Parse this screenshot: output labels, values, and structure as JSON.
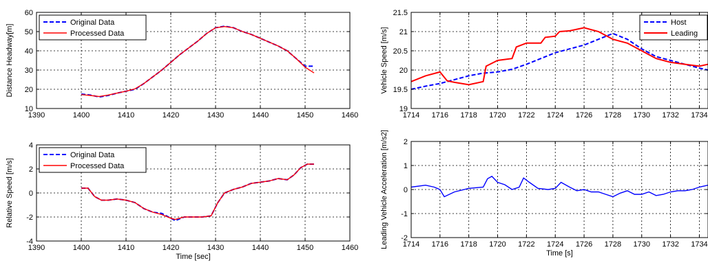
{
  "chart_data": [
    {
      "id": "headway",
      "type": "line",
      "xlabel": "",
      "ylabel": "Distance Headway[m]",
      "xlim": [
        1390,
        1460
      ],
      "ylim": [
        10,
        60
      ],
      "xticks": [
        1390,
        1400,
        1410,
        1420,
        1430,
        1440,
        1450,
        1460
      ],
      "yticks": [
        10,
        20,
        30,
        40,
        50,
        60
      ],
      "grid": true,
      "legend_position": "top-left",
      "series": [
        {
          "name": "Original Data",
          "color": "#0000ff",
          "style": "dashed",
          "x": [
            1400,
            1402,
            1404,
            1406,
            1408,
            1410,
            1412,
            1414,
            1416,
            1418,
            1420,
            1422,
            1424,
            1426,
            1428,
            1430,
            1432,
            1434,
            1436,
            1438,
            1440,
            1442,
            1444,
            1446,
            1448,
            1450,
            1452
          ],
          "y": [
            17.5,
            17.0,
            16.0,
            16.8,
            18.0,
            19.0,
            20.0,
            23.0,
            26.5,
            30.0,
            34.0,
            38.0,
            41.5,
            45.0,
            49.0,
            52.0,
            52.8,
            52.0,
            50.0,
            48.5,
            46.5,
            44.5,
            42.5,
            40.0,
            36.0,
            32.0,
            32.0
          ]
        },
        {
          "name": "Processed Data",
          "color": "#ff0000",
          "style": "solid",
          "x": [
            1400,
            1402,
            1404,
            1406,
            1408,
            1410,
            1412,
            1414,
            1416,
            1418,
            1420,
            1422,
            1424,
            1426,
            1428,
            1430,
            1432,
            1434,
            1436,
            1438,
            1440,
            1442,
            1444,
            1446,
            1448,
            1450,
            1452
          ],
          "y": [
            17.2,
            16.8,
            16.2,
            17.0,
            18.0,
            19.0,
            20.2,
            23.0,
            26.5,
            30.0,
            34.0,
            38.0,
            41.5,
            45.0,
            49.0,
            52.0,
            52.6,
            52.0,
            50.0,
            48.5,
            46.5,
            44.5,
            42.5,
            40.0,
            36.0,
            31.5,
            28.5
          ]
        }
      ]
    },
    {
      "id": "relspeed",
      "type": "line",
      "xlabel": "Time [sec]",
      "ylabel": "Relative Speed [m/s]",
      "xlim": [
        1390,
        1460
      ],
      "ylim": [
        -4,
        4
      ],
      "xticks": [
        1390,
        1400,
        1410,
        1420,
        1430,
        1440,
        1450,
        1460
      ],
      "yticks": [
        -4,
        -2,
        0,
        2,
        4
      ],
      "grid": true,
      "legend_position": "top-left",
      "series": [
        {
          "name": "Original Data",
          "color": "#0000ff",
          "style": "dashed",
          "x": [
            1400,
            1401.5,
            1403,
            1404.5,
            1406,
            1408,
            1410,
            1412,
            1414,
            1416,
            1418,
            1420,
            1421,
            1423,
            1425,
            1427,
            1429,
            1430.5,
            1432,
            1434,
            1436,
            1438,
            1440,
            1442,
            1444,
            1446,
            1447.5,
            1449,
            1450.5,
            1452
          ],
          "y": [
            0.4,
            0.4,
            -0.3,
            -0.6,
            -0.6,
            -0.5,
            -0.6,
            -0.8,
            -1.3,
            -1.6,
            -1.7,
            -2.1,
            -2.3,
            -2.0,
            -2.0,
            -2.0,
            -1.9,
            -0.8,
            0.0,
            0.3,
            0.5,
            0.8,
            0.9,
            1.0,
            1.2,
            1.1,
            1.5,
            2.1,
            2.4,
            2.4
          ]
        },
        {
          "name": "Processed Data",
          "color": "#ff0000",
          "style": "solid",
          "x": [
            1400,
            1401.5,
            1403,
            1404.5,
            1406,
            1408,
            1410,
            1412,
            1414,
            1416,
            1418,
            1420,
            1421,
            1423,
            1425,
            1427,
            1429,
            1430.5,
            1432,
            1434,
            1436,
            1438,
            1440,
            1442,
            1444,
            1446,
            1447.5,
            1449,
            1450.5,
            1452
          ],
          "y": [
            0.4,
            0.4,
            -0.3,
            -0.6,
            -0.6,
            -0.5,
            -0.6,
            -0.8,
            -1.3,
            -1.6,
            -1.8,
            -2.1,
            -2.2,
            -2.0,
            -2.0,
            -2.0,
            -1.9,
            -0.8,
            0.0,
            0.3,
            0.5,
            0.8,
            0.9,
            1.0,
            1.2,
            1.1,
            1.5,
            2.1,
            2.4,
            2.4
          ]
        }
      ]
    },
    {
      "id": "vehspeed",
      "type": "line",
      "xlabel": "",
      "ylabel": "Vehicle Speed [m/s]",
      "xlim": [
        1714,
        1734.6
      ],
      "ylim": [
        19,
        21.5
      ],
      "xticks": [
        1714,
        1716,
        1718,
        1720,
        1722,
        1724,
        1726,
        1728,
        1730,
        1732,
        1734
      ],
      "yticks": [
        19,
        19.5,
        20,
        20.5,
        21,
        21.5
      ],
      "grid": true,
      "legend_position": "top-right",
      "series": [
        {
          "name": "Host",
          "color": "#0000ff",
          "style": "dashed",
          "x": [
            1714,
            1715,
            1716,
            1717,
            1718,
            1719,
            1720,
            1721,
            1722,
            1723,
            1724,
            1725,
            1726,
            1727,
            1728,
            1729,
            1730,
            1731,
            1732,
            1733,
            1734,
            1734.6
          ],
          "y": [
            19.5,
            19.58,
            19.65,
            19.75,
            19.85,
            19.92,
            19.95,
            20.02,
            20.15,
            20.3,
            20.45,
            20.55,
            20.65,
            20.8,
            20.95,
            20.8,
            20.55,
            20.35,
            20.25,
            20.15,
            20.05,
            20.0
          ]
        },
        {
          "name": "Leading",
          "color": "#ff0000",
          "style": "solid",
          "x": [
            1714,
            1715,
            1716,
            1716.5,
            1717,
            1718,
            1719,
            1719.2,
            1720,
            1721,
            1721.3,
            1722,
            1723,
            1723.3,
            1724,
            1724.3,
            1725,
            1726,
            1727,
            1728,
            1729,
            1730,
            1731,
            1732,
            1733,
            1734,
            1734.6
          ],
          "y": [
            19.7,
            19.85,
            19.95,
            19.72,
            19.68,
            19.62,
            19.7,
            20.1,
            20.25,
            20.3,
            20.6,
            20.7,
            20.7,
            20.85,
            20.88,
            21.0,
            21.02,
            21.1,
            21.0,
            20.8,
            20.7,
            20.5,
            20.3,
            20.2,
            20.15,
            20.1,
            20.15
          ]
        }
      ]
    },
    {
      "id": "accel",
      "type": "line",
      "xlabel": "Time [s]",
      "ylabel": "Leading Vehicle Acceleration [m/s2]",
      "xlim": [
        1714,
        1734.6
      ],
      "ylim": [
        -2,
        2
      ],
      "xticks": [
        1714,
        1716,
        1718,
        1720,
        1722,
        1724,
        1726,
        1728,
        1730,
        1732,
        1734
      ],
      "yticks": [
        -2,
        -1,
        0,
        1,
        2
      ],
      "grid": true,
      "legend_position": "none",
      "series": [
        {
          "name": "",
          "color": "#0000ff",
          "style": "solid",
          "x": [
            1714,
            1715,
            1715.6,
            1716,
            1716.3,
            1717,
            1718,
            1719,
            1719.3,
            1719.6,
            1720,
            1720.5,
            1721,
            1721.5,
            1721.8,
            1722.2,
            1722.8,
            1723.5,
            1724,
            1724.4,
            1725,
            1725.5,
            1726,
            1726.5,
            1727,
            1727.5,
            1728,
            1728.5,
            1729,
            1729.5,
            1730,
            1730.5,
            1731,
            1731.5,
            1732,
            1732.5,
            1733,
            1733.5,
            1734,
            1734.6
          ],
          "y": [
            0.1,
            0.18,
            0.1,
            0.0,
            -0.3,
            -0.1,
            0.05,
            0.1,
            0.45,
            0.55,
            0.3,
            0.2,
            0.0,
            0.1,
            0.48,
            0.3,
            0.05,
            0.0,
            0.05,
            0.3,
            0.1,
            -0.05,
            0.0,
            -0.1,
            -0.1,
            -0.2,
            -0.3,
            -0.15,
            -0.05,
            -0.2,
            -0.2,
            -0.1,
            -0.25,
            -0.2,
            -0.1,
            -0.05,
            -0.05,
            0.0,
            0.1,
            0.18
          ]
        }
      ]
    }
  ]
}
